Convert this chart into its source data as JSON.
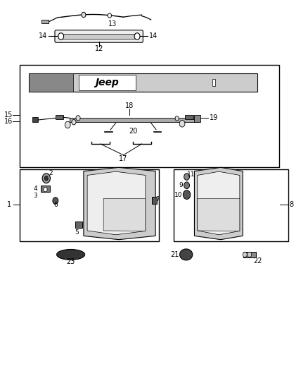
{
  "bg_color": "#ffffff",
  "line_color": "#000000",
  "text_color": "#000000"
}
